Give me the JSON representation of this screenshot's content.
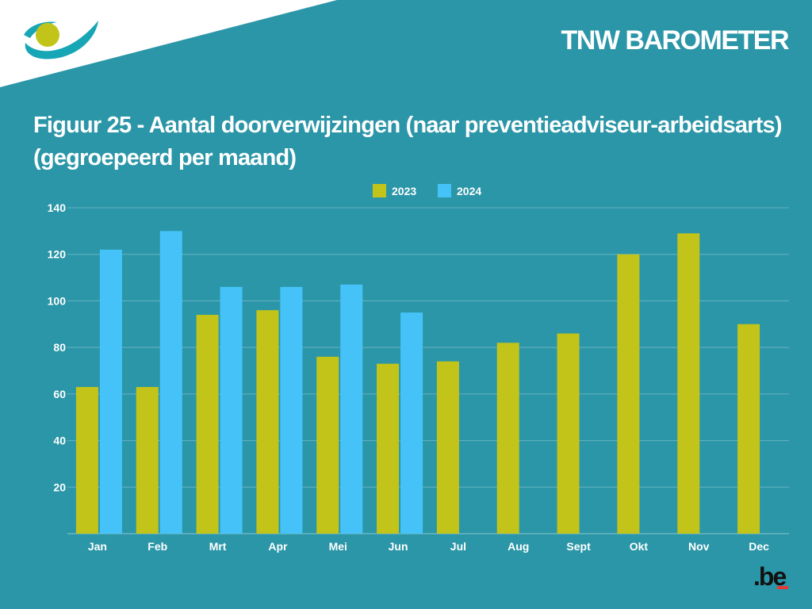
{
  "header": {
    "title": "TNW BAROMETER"
  },
  "colors": {
    "background": "#2b96a8",
    "series_2023": "#c3c419",
    "series_2024": "#45c3f8",
    "logo_teal": "#17a6b5",
    "logo_yellow": "#c3c419"
  },
  "icons": {
    "logo": "government-eye-logo",
    "be_logo": "dot-be-logo"
  },
  "be_logo_text": ".be",
  "chart_data": {
    "type": "bar",
    "title": "Figuur 25 - Aantal doorverwijzingen (naar preventieadviseur-arbeidsarts) (gegroepeerd per maand)",
    "xlabel": "",
    "ylabel": "",
    "categories": [
      "Jan",
      "Feb",
      "Mrt",
      "Apr",
      "Mei",
      "Jun",
      "Jul",
      "Aug",
      "Sept",
      "Okt",
      "Nov",
      "Dec"
    ],
    "series": [
      {
        "name": "2023",
        "values": [
          63,
          63,
          94,
          96,
          76,
          73,
          74,
          82,
          86,
          120,
          129,
          90
        ]
      },
      {
        "name": "2024",
        "values": [
          122,
          130,
          106,
          106,
          107,
          95,
          null,
          null,
          null,
          null,
          null,
          null
        ]
      }
    ],
    "ylim": [
      0,
      140
    ],
    "yticks": [
      20,
      40,
      60,
      80,
      100,
      120,
      140
    ],
    "grid": true,
    "legend": "top-center"
  }
}
